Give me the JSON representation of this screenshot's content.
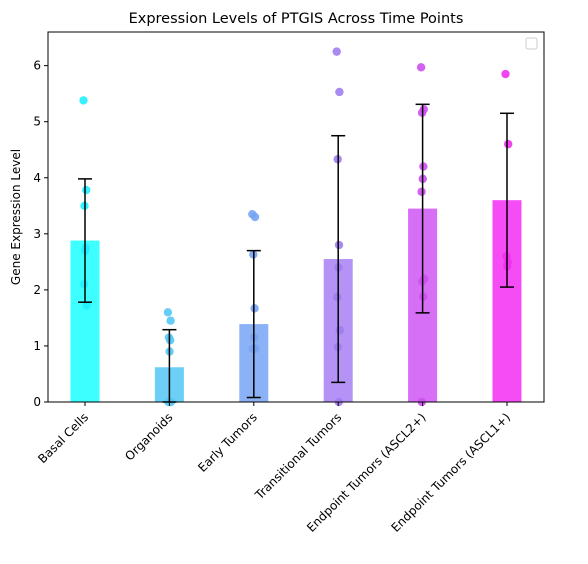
{
  "chart_data": {
    "type": "bar",
    "title": "Expression Levels of PTGIS Across Time Points",
    "xlabel": "",
    "ylabel": "Gene Expression Level",
    "ylim": [
      0,
      6.6
    ],
    "yticks": [
      0,
      1,
      2,
      3,
      4,
      5,
      6
    ],
    "legend": "upper right (empty)",
    "grid": false,
    "categories": [
      "Basal Cells",
      "Organoids",
      "Early Tumors",
      "Transitional Tumors",
      "Endpoint Tumors (ASCL2+)",
      "Endpoint Tumors (ASCL1+)"
    ],
    "colors": [
      "#33ffff",
      "#66ccf5",
      "#85aef5",
      "#b08cf5",
      "#d466f5",
      "#f542f5"
    ],
    "point_colors": [
      "#22f0ff",
      "#55c8f5",
      "#77a4f2",
      "#a07df0",
      "#cc50ee",
      "#f030f0"
    ],
    "means": [
      2.88,
      0.62,
      1.39,
      2.55,
      3.45,
      3.6
    ],
    "std": [
      1.1,
      0.67,
      1.31,
      2.2,
      1.86,
      1.55
    ],
    "points": [
      [
        5.38,
        3.78,
        3.5,
        2.75,
        2.7,
        2.1,
        1.72
      ],
      [
        1.6,
        1.45,
        1.15,
        1.1,
        0.9,
        0.0,
        0.0
      ],
      [
        3.35,
        3.3,
        2.63,
        1.67,
        1.15,
        0.95,
        0.95
      ],
      [
        6.25,
        5.53,
        4.33,
        2.8,
        2.4,
        1.87,
        1.28,
        0.98,
        0.0
      ],
      [
        5.97,
        5.22,
        5.16,
        4.2,
        3.98,
        3.75,
        2.2,
        2.15,
        1.88,
        0.0
      ],
      [
        5.85,
        4.6,
        2.6,
        2.5,
        2.42
      ]
    ]
  }
}
